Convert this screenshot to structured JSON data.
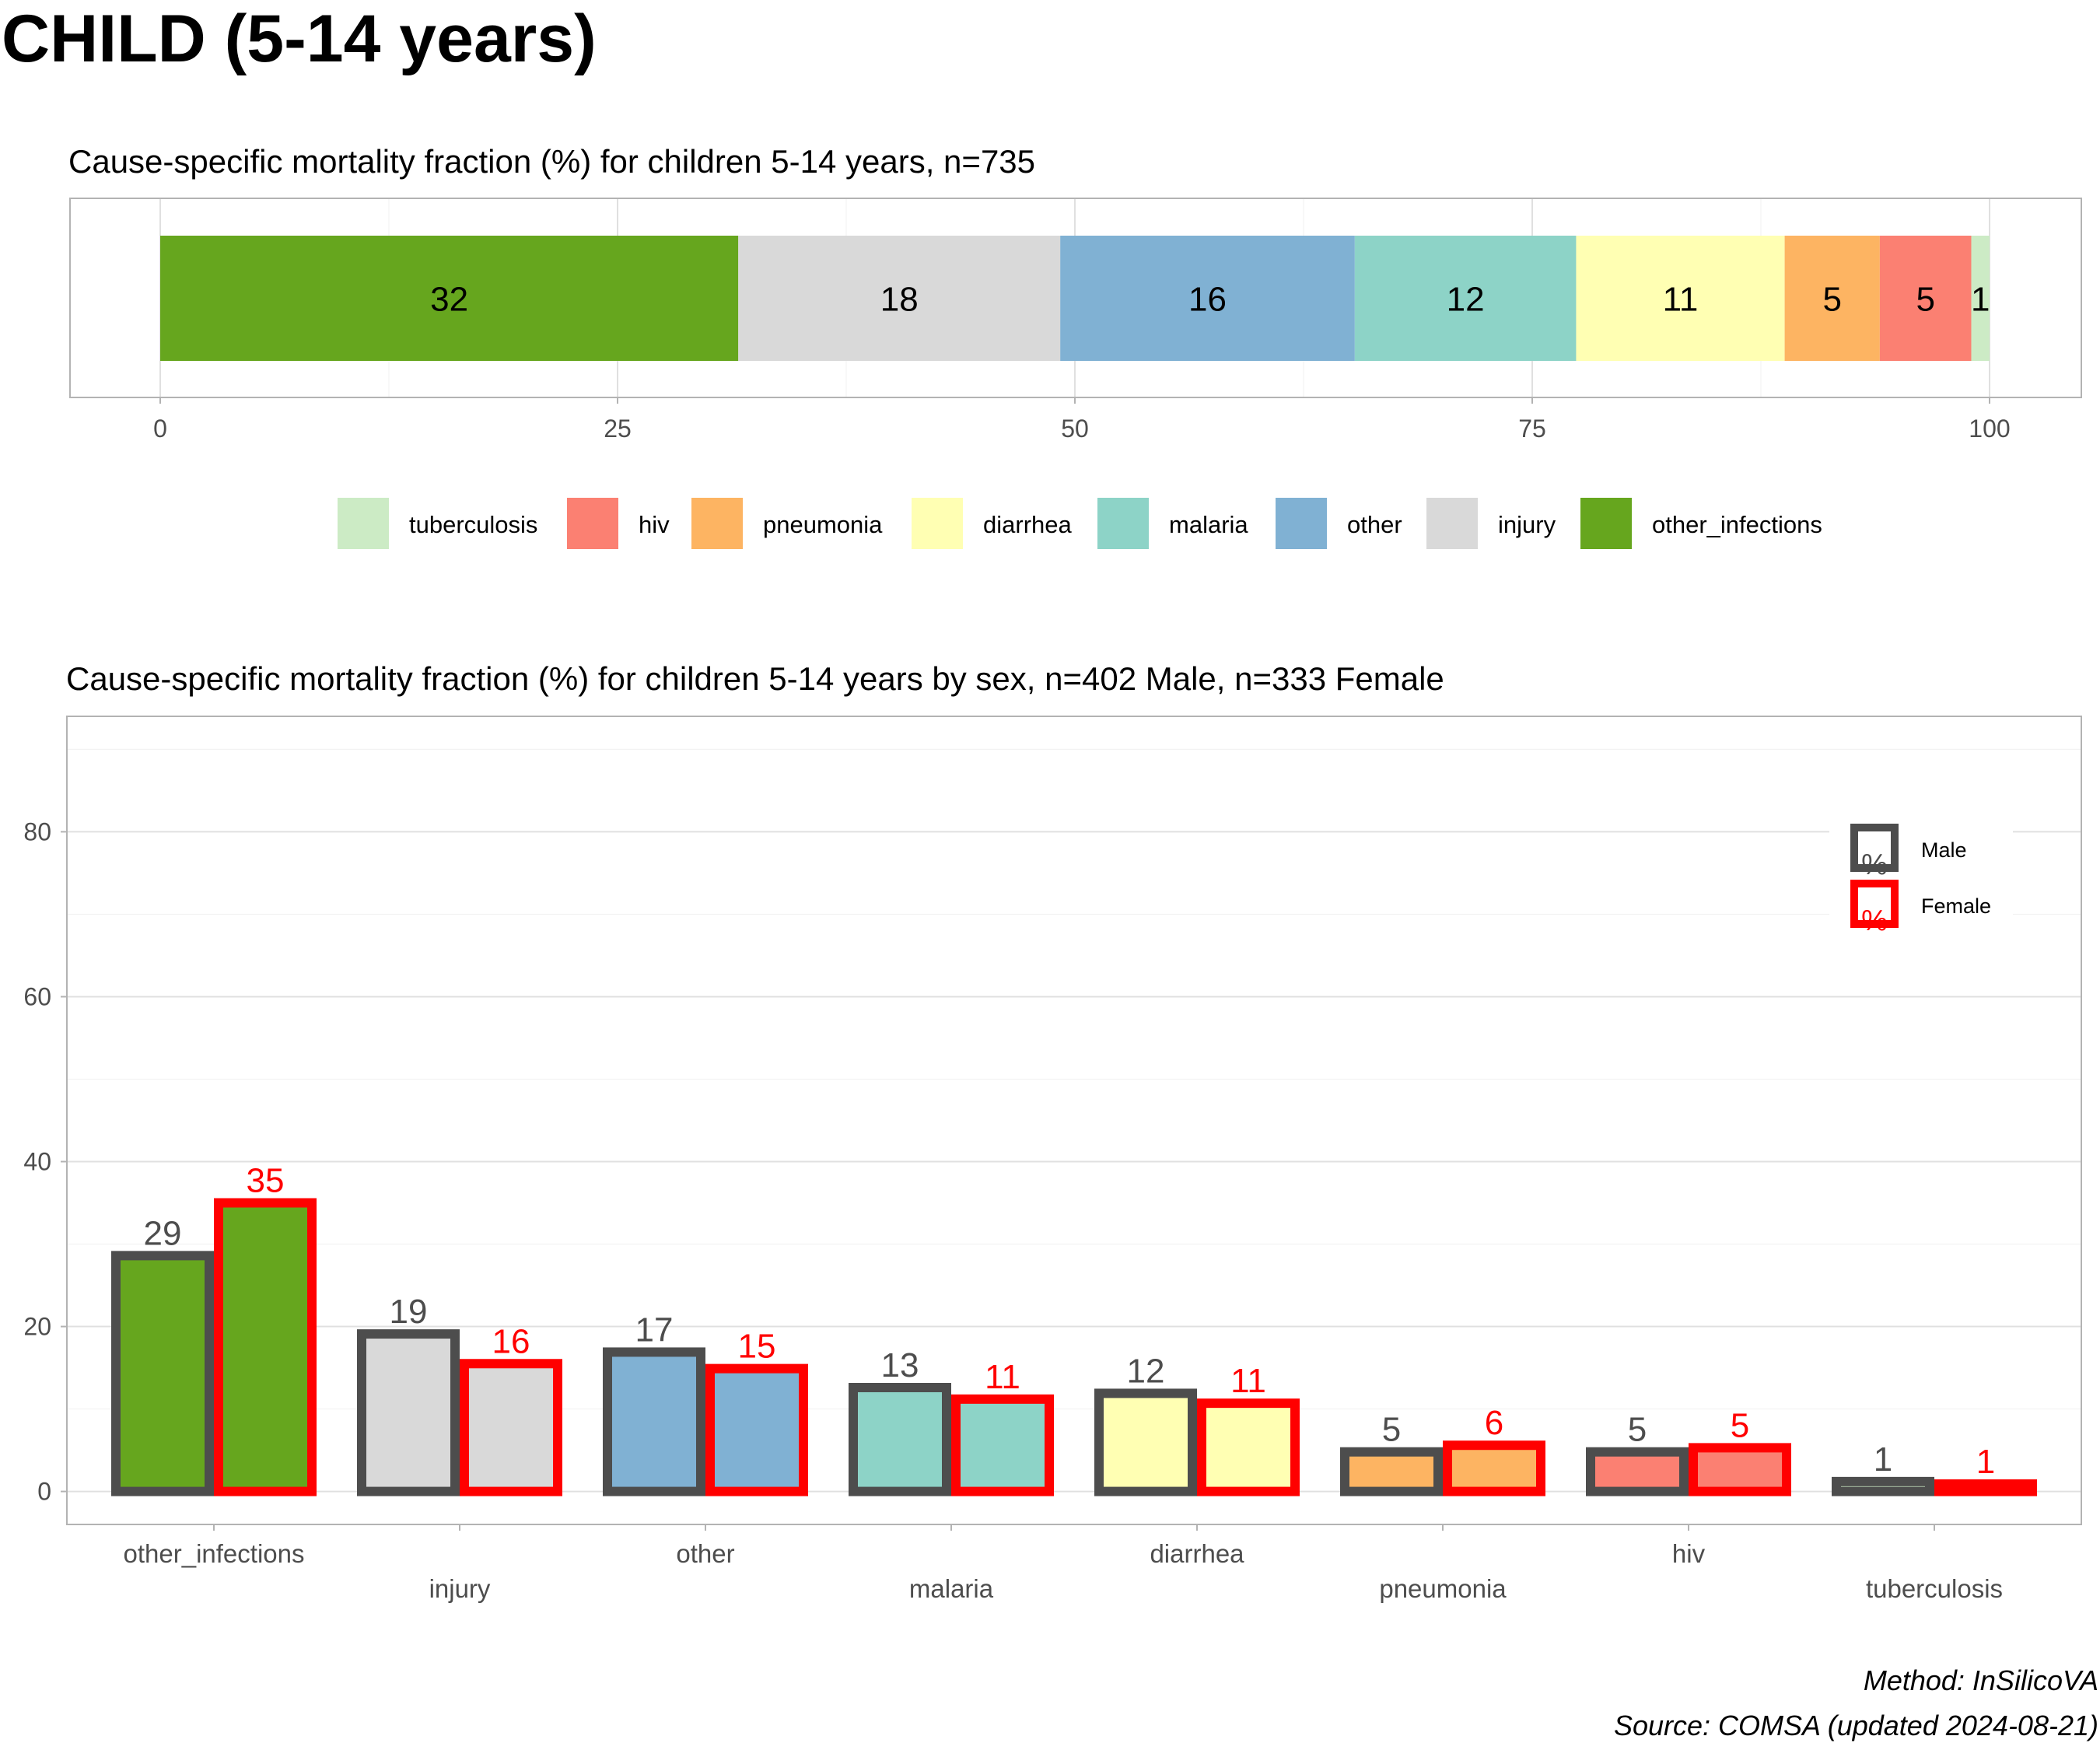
{
  "header": {
    "title": "CHILD (5-14 years)"
  },
  "caption": {
    "method": "Method: InSilicoVA",
    "source": "Source: COMSA (updated 2024-08-21)"
  },
  "chart_data": [
    {
      "type": "bar",
      "orientation": "horizontal-stacked",
      "title": "Cause-specific mortality fraction (%) for children 5-14 years, n=735",
      "xlim": [
        0,
        100
      ],
      "ticks": [
        0,
        25,
        50,
        75,
        100
      ],
      "segments": [
        {
          "name": "other_infections",
          "value": 31.6,
          "label": "32",
          "color": "#66A61E"
        },
        {
          "name": "injury",
          "value": 17.6,
          "label": "18",
          "color": "#D9D9D9"
        },
        {
          "name": "other",
          "value": 16.1,
          "label": "16",
          "color": "#80B1D3"
        },
        {
          "name": "malaria",
          "value": 12.1,
          "label": "12",
          "color": "#8DD3C7"
        },
        {
          "name": "diarrhea",
          "value": 11.4,
          "label": "11",
          "color": "#FFFFB3"
        },
        {
          "name": "pneumonia",
          "value": 5.2,
          "label": "5",
          "color": "#FDB462"
        },
        {
          "name": "hiv",
          "value": 5.0,
          "label": "5",
          "color": "#FB8072"
        },
        {
          "name": "tuberculosis",
          "value": 1.0,
          "label": "1",
          "color": "#CCEBC5"
        }
      ],
      "legend": {
        "placement": "bottom",
        "order": [
          "tuberculosis",
          "hiv",
          "pneumonia",
          "diarrhea",
          "malaria",
          "other",
          "injury",
          "other_infections"
        ]
      },
      "grid": true
    },
    {
      "type": "bar",
      "orientation": "vertical-grouped",
      "title": "Cause-specific mortality fraction (%) for children 5-14 years by sex, n=402 Male, n=333 Female",
      "categories": [
        "other_infections",
        "injury",
        "other",
        "malaria",
        "diarrhea",
        "pneumonia",
        "hiv",
        "tuberculosis"
      ],
      "colors": [
        "#66A61E",
        "#D9D9D9",
        "#80B1D3",
        "#8DD3C7",
        "#FFFFB3",
        "#FDB462",
        "#FB8072",
        "#CCEBC5"
      ],
      "series": [
        {
          "name": "Male",
          "values": [
            28.6,
            19.1,
            16.9,
            12.6,
            11.9,
            4.8,
            4.8,
            1.2
          ],
          "labels": [
            "29",
            "19",
            "17",
            "13",
            "12",
            "5",
            "5",
            "1"
          ],
          "outline": "#4D4D4D"
        },
        {
          "name": "Female",
          "values": [
            35.0,
            15.5,
            14.9,
            11.2,
            10.7,
            5.6,
            5.3,
            0.9
          ],
          "labels": [
            "35",
            "16",
            "15",
            "11",
            "11",
            "6",
            "5",
            "1"
          ],
          "outline": "#FF0000"
        }
      ],
      "ylim": [
        -4,
        94
      ],
      "ticks": [
        0,
        20,
        40,
        60,
        80
      ],
      "legend": {
        "placement": "top-right",
        "key_glyph": "%"
      },
      "grid": true
    }
  ]
}
